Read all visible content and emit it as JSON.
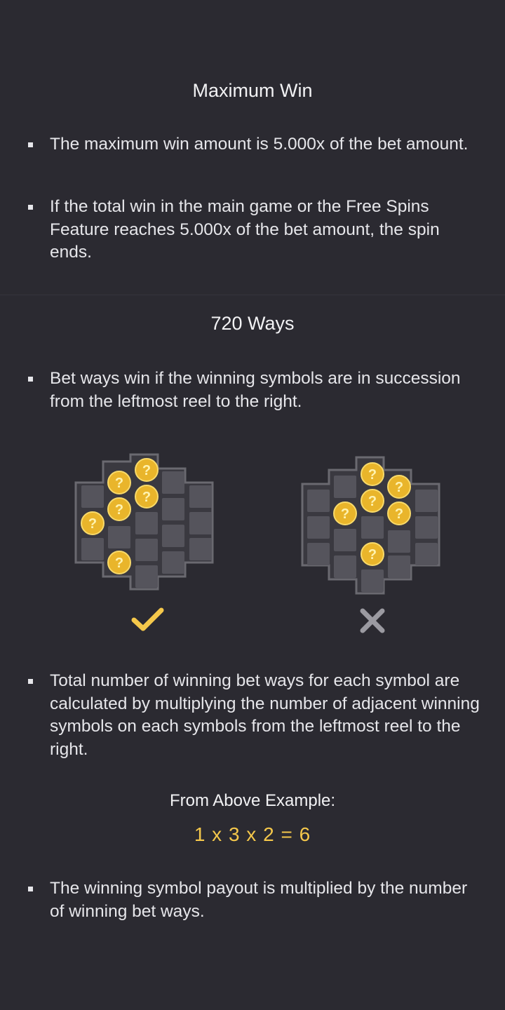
{
  "max_win": {
    "title": "Maximum Win",
    "bullets": [
      "The maximum win amount is 5.000x of the bet amount.",
      "If the total win in the main game or the Free Spins Feature reaches 5.000x of the bet amount, the spin ends."
    ]
  },
  "ways": {
    "title": "720 Ways",
    "bullet_1": "Bet ways win if the winning symbols are in succession from the leftmost reel to the right.",
    "example_valid_icon": "checkmark-icon",
    "example_invalid_icon": "cross-icon",
    "bullet_2": "Total number of winning bet ways for each symbol are calculated by multiplying the number of adjacent winning symbols on each symbols from the leftmost reel to the right.",
    "example_label": "From Above Example:",
    "formula": "1 x 3 x 2 = 6",
    "bullet_3": "The winning symbol payout is multiplied by the number of winning bet ways."
  },
  "colors": {
    "background": "#2b2a31",
    "accent_gold": "#f5c84b",
    "grid_cell": "#55545c",
    "grid_border": "#6a6970"
  }
}
